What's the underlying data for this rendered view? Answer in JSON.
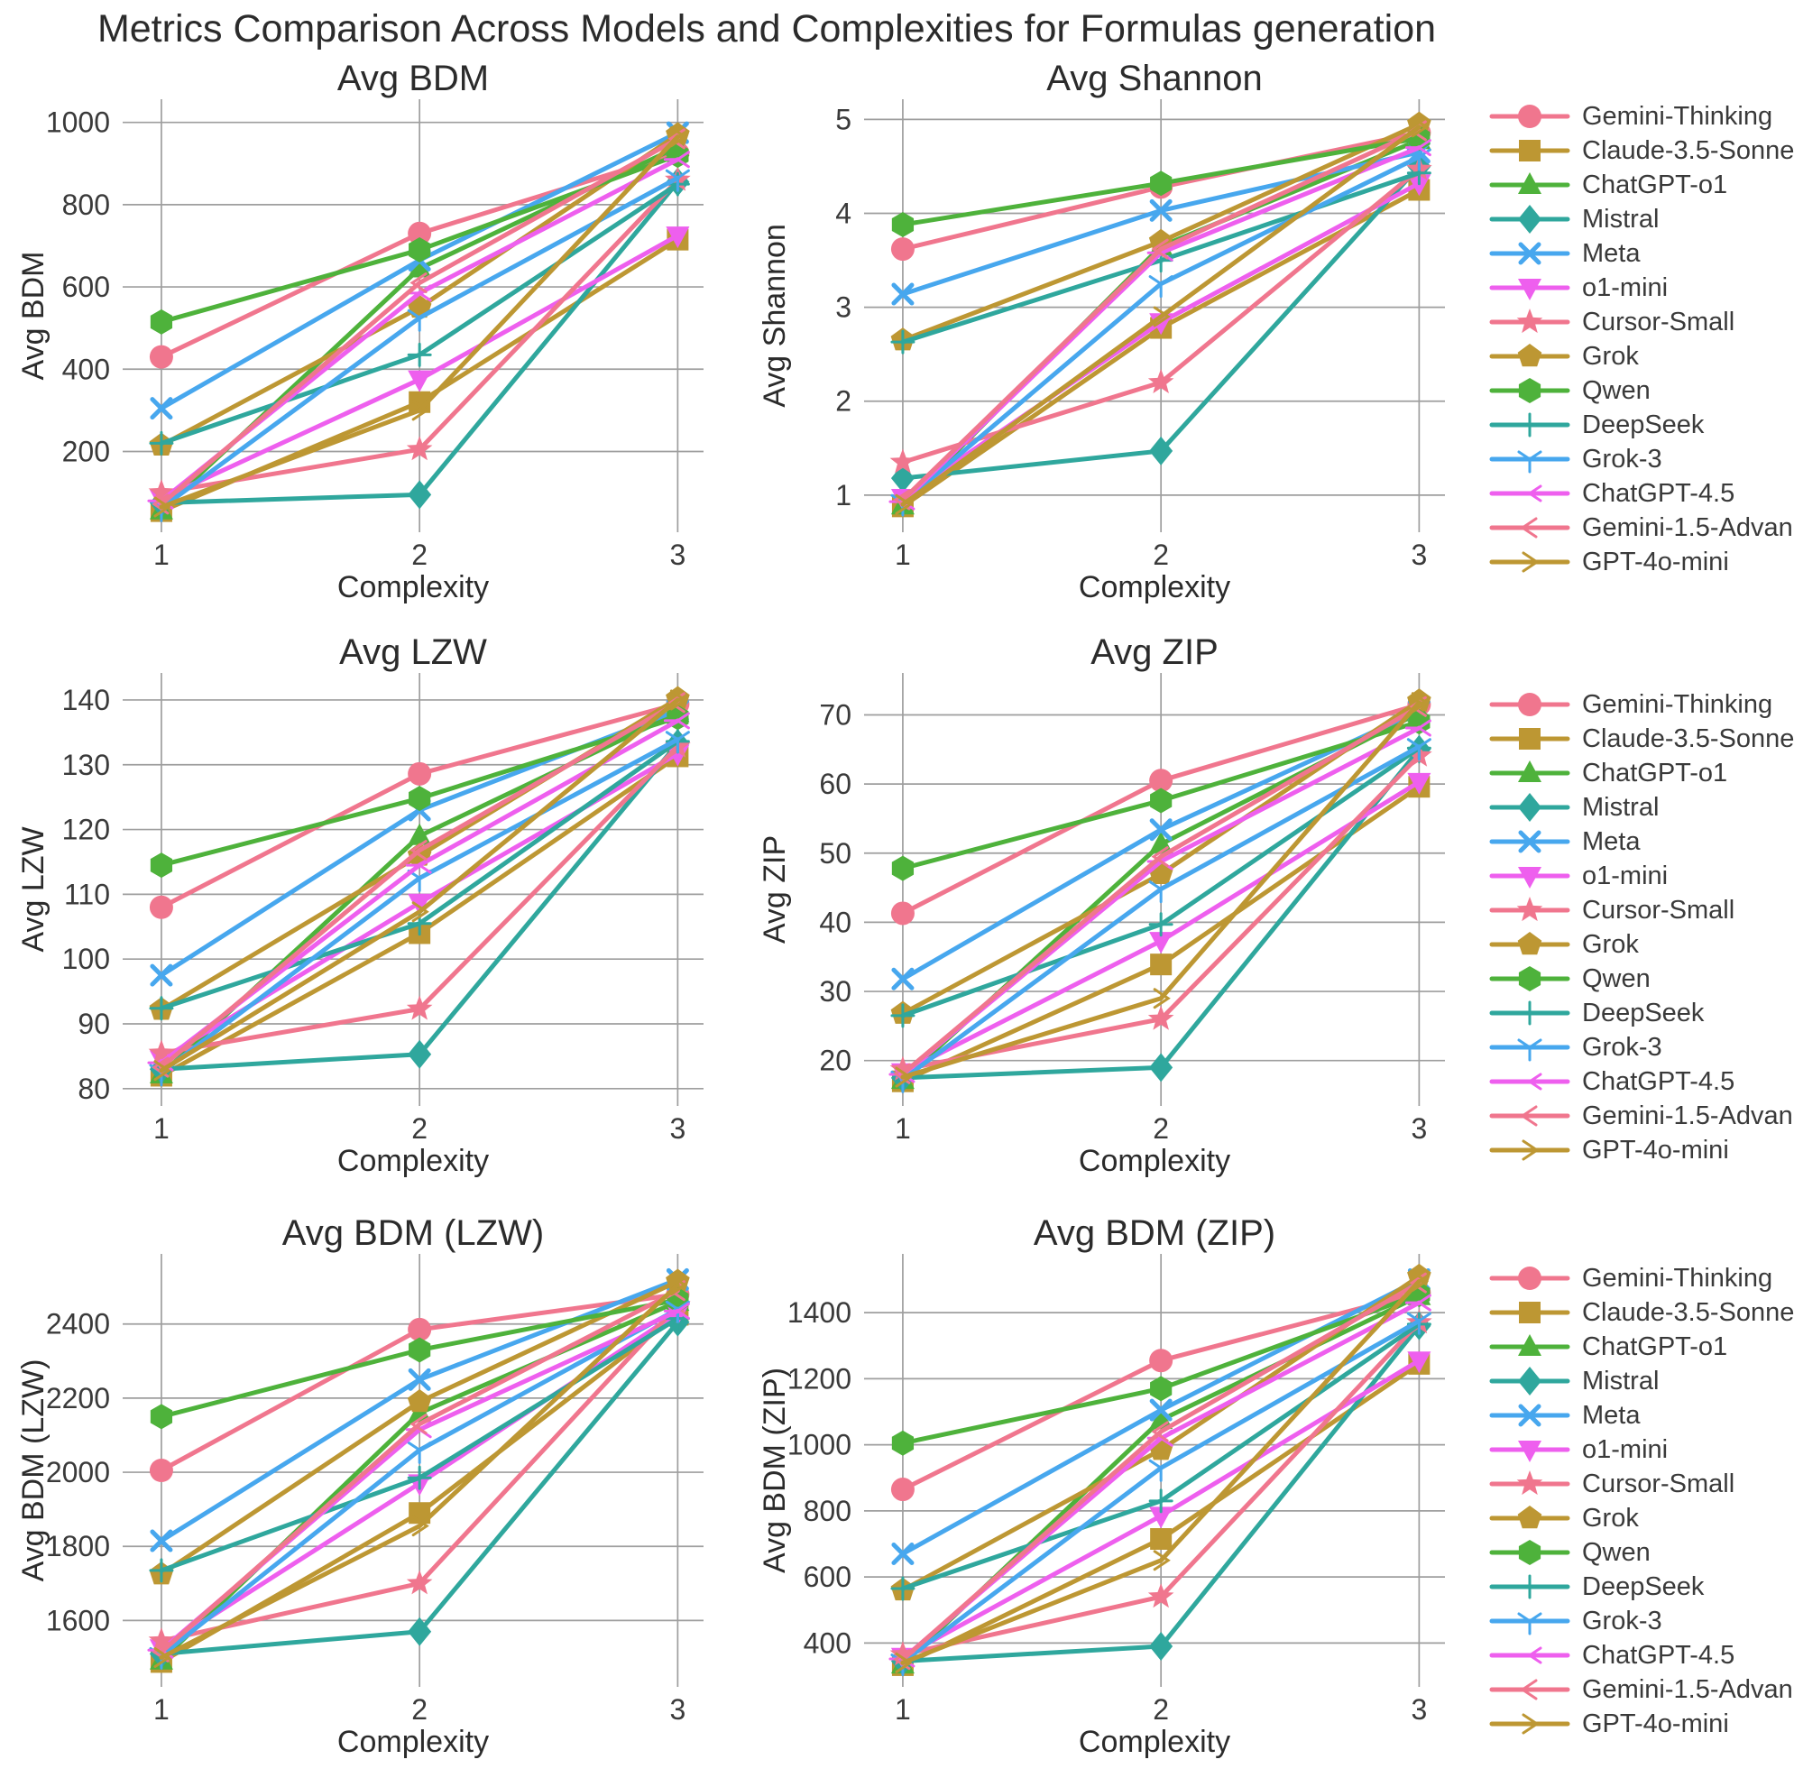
{
  "title": "Metrics Comparison Across Models and Complexities for Formulas generation",
  "xlabel": "Complexity",
  "x_ticks": [
    "1",
    "2",
    "3"
  ],
  "palette": {
    "pink": "#F0768E",
    "olive": "#BD9733",
    "green": "#4EB23B",
    "teal": "#2FA79D",
    "blue": "#47A7EE",
    "magenta": "#EE5FEE",
    "grid": "#9E9E9E",
    "text": "#3a3a3a",
    "title_text": "#2b2b2b"
  },
  "models": [
    {
      "name": "Gemini-Thinking",
      "color": "#F0768E",
      "marker": "circle"
    },
    {
      "name": "Claude-3.5-Sonnet",
      "color": "#BD9733",
      "marker": "square"
    },
    {
      "name": "ChatGPT-o1",
      "color": "#4EB23B",
      "marker": "triangle-up"
    },
    {
      "name": "Mistral",
      "color": "#2FA79D",
      "marker": "diamond"
    },
    {
      "name": "Meta",
      "color": "#47A7EE",
      "marker": "x"
    },
    {
      "name": "o1-mini",
      "color": "#EE5FEE",
      "marker": "triangle-down"
    },
    {
      "name": "Cursor-Small",
      "color": "#F0768E",
      "marker": "star"
    },
    {
      "name": "Grok",
      "color": "#BD9733",
      "marker": "pentagon"
    },
    {
      "name": "Qwen",
      "color": "#4EB23B",
      "marker": "hexagon"
    },
    {
      "name": "DeepSeek",
      "color": "#2FA79D",
      "marker": "plus"
    },
    {
      "name": "Grok-3",
      "color": "#47A7EE",
      "marker": "tri-down"
    },
    {
      "name": "ChatGPT-4.5",
      "color": "#EE5FEE",
      "marker": "tri-left"
    },
    {
      "name": "Gemini-1.5-Advanced",
      "color": "#F0768E",
      "marker": "caret-left"
    },
    {
      "name": "GPT-4o-mini",
      "color": "#BD9733",
      "marker": "arrow-right"
    }
  ],
  "chart_data": [
    {
      "id": "avg-bdm",
      "type": "line",
      "title": "Avg BDM",
      "ylabel": "Avg BDM",
      "xlabel": "Complexity",
      "x": [
        1,
        2,
        3
      ],
      "grid": true,
      "legend_position": "right",
      "yticks": [
        200,
        400,
        600,
        800,
        1000
      ],
      "ylim": [
        30,
        1030
      ],
      "xlim": [
        0.85,
        3.1
      ],
      "series": [
        {
          "name": "Gemini-Thinking",
          "values": [
            430,
            730,
            925
          ]
        },
        {
          "name": "Claude-3.5-Sonnet",
          "values": [
            55,
            320,
            715
          ]
        },
        {
          "name": "ChatGPT-o1",
          "values": [
            57,
            645,
            940
          ]
        },
        {
          "name": "Mistral",
          "values": [
            75,
            95,
            855
          ]
        },
        {
          "name": "Meta",
          "values": [
            305,
            665,
            975
          ]
        },
        {
          "name": "o1-mini",
          "values": [
            85,
            375,
            725
          ]
        },
        {
          "name": "Cursor-Small",
          "values": [
            100,
            205,
            860
          ]
        },
        {
          "name": "Grok",
          "values": [
            215,
            550,
            970
          ]
        },
        {
          "name": "Qwen",
          "values": [
            515,
            690,
            920
          ]
        },
        {
          "name": "DeepSeek",
          "values": [
            220,
            435,
            850
          ]
        },
        {
          "name": "Grok-3",
          "values": [
            62,
            525,
            865
          ]
        },
        {
          "name": "ChatGPT-4.5",
          "values": [
            80,
            585,
            910
          ]
        },
        {
          "name": "Gemini-1.5-Advanced",
          "values": [
            72,
            610,
            960
          ]
        },
        {
          "name": "GPT-4o-mini",
          "values": [
            65,
            300,
            965
          ]
        }
      ]
    },
    {
      "id": "avg-shannon",
      "type": "line",
      "title": "Avg Shannon",
      "ylabel": "Avg Shannon",
      "xlabel": "Complexity",
      "x": [
        1,
        2,
        3
      ],
      "grid": true,
      "legend_position": "right",
      "yticks": [
        1,
        2,
        3,
        4,
        5
      ],
      "ylim": [
        0.72,
        5.1
      ],
      "xlim": [
        0.85,
        3.1
      ],
      "series": [
        {
          "name": "Gemini-Thinking",
          "values": [
            3.62,
            4.28,
            4.86
          ]
        },
        {
          "name": "Claude-3.5-Sonnet",
          "values": [
            0.88,
            2.78,
            4.25
          ]
        },
        {
          "name": "ChatGPT-o1",
          "values": [
            0.89,
            3.65,
            4.78
          ]
        },
        {
          "name": "Mistral",
          "values": [
            1.18,
            1.47,
            4.5
          ]
        },
        {
          "name": "Meta",
          "values": [
            3.14,
            4.03,
            4.65
          ]
        },
        {
          "name": "o1-mini",
          "values": [
            0.97,
            2.84,
            4.32
          ]
        },
        {
          "name": "Cursor-Small",
          "values": [
            1.35,
            2.2,
            4.47
          ]
        },
        {
          "name": "Grok",
          "values": [
            2.65,
            3.7,
            4.95
          ]
        },
        {
          "name": "Qwen",
          "values": [
            3.88,
            4.32,
            4.8
          ]
        },
        {
          "name": "DeepSeek",
          "values": [
            2.63,
            3.5,
            4.43
          ]
        },
        {
          "name": "Grok-3",
          "values": [
            0.92,
            3.25,
            4.6
          ]
        },
        {
          "name": "ChatGPT-4.5",
          "values": [
            0.93,
            3.58,
            4.7
          ]
        },
        {
          "name": "Gemini-1.5-Advanced",
          "values": [
            0.95,
            3.62,
            4.88
          ]
        },
        {
          "name": "GPT-4o-mini",
          "values": [
            0.9,
            2.9,
            4.92
          ]
        }
      ]
    },
    {
      "id": "avg-lzw",
      "type": "line",
      "title": "Avg LZW",
      "ylabel": "Avg LZW",
      "xlabel": "Complexity",
      "x": [
        1,
        2,
        3
      ],
      "grid": true,
      "legend_position": "right",
      "yticks": [
        80,
        90,
        100,
        110,
        120,
        130,
        140
      ],
      "ylim": [
        79,
        142.5
      ],
      "xlim": [
        0.85,
        3.1
      ],
      "series": [
        {
          "name": "Gemini-Thinking",
          "values": [
            108,
            128.6,
            139.4
          ]
        },
        {
          "name": "Claude-3.5-Sonnet",
          "values": [
            82,
            104,
            131.3
          ]
        },
        {
          "name": "ChatGPT-o1",
          "values": [
            82.2,
            119,
            138
          ]
        },
        {
          "name": "Mistral",
          "values": [
            83,
            85.3,
            133.3
          ]
        },
        {
          "name": "Meta",
          "values": [
            97.5,
            123,
            138.4
          ]
        },
        {
          "name": "o1-mini",
          "values": [
            84.5,
            108.7,
            131.7
          ]
        },
        {
          "name": "Cursor-Small",
          "values": [
            85.5,
            92.3,
            132.8
          ]
        },
        {
          "name": "Grok",
          "values": [
            92.2,
            116,
            140.2
          ]
        },
        {
          "name": "Qwen",
          "values": [
            114.5,
            124.8,
            137.3
          ]
        },
        {
          "name": "DeepSeek",
          "values": [
            92.4,
            105.5,
            133.6
          ]
        },
        {
          "name": "Grok-3",
          "values": [
            82.5,
            112.5,
            133.9
          ]
        },
        {
          "name": "ChatGPT-4.5",
          "values": [
            84,
            114.5,
            136.8
          ]
        },
        {
          "name": "Gemini-1.5-Advanced",
          "values": [
            83.3,
            116.8,
            139.6
          ]
        },
        {
          "name": "GPT-4o-mini",
          "values": [
            82.8,
            107.3,
            140
          ]
        }
      ]
    },
    {
      "id": "avg-zip",
      "type": "line",
      "title": "Avg ZIP",
      "ylabel": "Avg ZIP",
      "xlabel": "Complexity",
      "x": [
        1,
        2,
        3
      ],
      "grid": true,
      "legend_position": "right",
      "yticks": [
        20,
        30,
        40,
        50,
        60,
        70
      ],
      "ylim": [
        15,
        74.5
      ],
      "xlim": [
        0.85,
        3.1
      ],
      "series": [
        {
          "name": "Gemini-Thinking",
          "values": [
            41.3,
            60.5,
            71.5
          ]
        },
        {
          "name": "Claude-3.5-Sonnet",
          "values": [
            17,
            33.9,
            59.6
          ]
        },
        {
          "name": "ChatGPT-o1",
          "values": [
            17.2,
            51.3,
            70.3
          ]
        },
        {
          "name": "Mistral",
          "values": [
            17.5,
            19,
            65
          ]
        },
        {
          "name": "Meta",
          "values": [
            31.8,
            53.4,
            70.6
          ]
        },
        {
          "name": "o1-mini",
          "values": [
            18.3,
            37.3,
            60.3
          ]
        },
        {
          "name": "Cursor-Small",
          "values": [
            18.7,
            26,
            64.1
          ]
        },
        {
          "name": "Grok",
          "values": [
            26.8,
            47,
            72
          ]
        },
        {
          "name": "Qwen",
          "values": [
            47.8,
            57.6,
            69
          ]
        },
        {
          "name": "DeepSeek",
          "values": [
            26.5,
            39.7,
            65.2
          ]
        },
        {
          "name": "Grok-3",
          "values": [
            17.3,
            44.8,
            65.4
          ]
        },
        {
          "name": "ChatGPT-4.5",
          "values": [
            18,
            48.8,
            68.1
          ]
        },
        {
          "name": "Gemini-1.5-Advanced",
          "values": [
            18.1,
            49.5,
            71.2
          ]
        },
        {
          "name": "GPT-4o-mini",
          "values": [
            17.6,
            29,
            71.8
          ]
        }
      ]
    },
    {
      "id": "avg-bdm-lzw",
      "type": "line",
      "title": "Avg BDM (LZW)",
      "ylabel": "Avg BDM (LZW)",
      "xlabel": "Complexity",
      "x": [
        1,
        2,
        3
      ],
      "grid": true,
      "legend_position": "right",
      "yticks": [
        1600,
        1800,
        2000,
        2200,
        2400
      ],
      "ylim": [
        1450,
        2560
      ],
      "xlim": [
        0.85,
        3.1
      ],
      "series": [
        {
          "name": "Gemini-Thinking",
          "values": [
            2005,
            2385,
            2480
          ]
        },
        {
          "name": "Claude-3.5-Sonnet",
          "values": [
            1488,
            1890,
            2425
          ]
        },
        {
          "name": "ChatGPT-o1",
          "values": [
            1492,
            2160,
            2460
          ]
        },
        {
          "name": "Mistral",
          "values": [
            1510,
            1570,
            2405
          ]
        },
        {
          "name": "Meta",
          "values": [
            1815,
            2250,
            2520
          ]
        },
        {
          "name": "o1-mini",
          "values": [
            1525,
            1970,
            2430
          ]
        },
        {
          "name": "Cursor-Small",
          "values": [
            1545,
            1700,
            2450
          ]
        },
        {
          "name": "Grok",
          "values": [
            1725,
            2190,
            2515
          ]
        },
        {
          "name": "Qwen",
          "values": [
            2150,
            2330,
            2465
          ]
        },
        {
          "name": "DeepSeek",
          "values": [
            1735,
            1985,
            2415
          ]
        },
        {
          "name": "Grok-3",
          "values": [
            1505,
            2060,
            2440
          ]
        },
        {
          "name": "ChatGPT-4.5",
          "values": [
            1520,
            2115,
            2435
          ]
        },
        {
          "name": "Gemini-1.5-Advanced",
          "values": [
            1515,
            2130,
            2490
          ]
        },
        {
          "name": "GPT-4o-mini",
          "values": [
            1500,
            1855,
            2505
          ]
        }
      ]
    },
    {
      "id": "avg-bdm-zip",
      "type": "line",
      "title": "Avg BDM (ZIP)",
      "ylabel": "Avg BDM (ZIP)",
      "xlabel": "Complexity",
      "x": [
        1,
        2,
        3
      ],
      "grid": true,
      "legend_position": "right",
      "yticks": [
        400,
        600,
        800,
        1000,
        1200,
        1400
      ],
      "ylim": [
        300,
        1545
      ],
      "xlim": [
        0.85,
        3.1
      ],
      "series": [
        {
          "name": "Gemini-Thinking",
          "values": [
            865,
            1255,
            1460
          ]
        },
        {
          "name": "Claude-3.5-Sonnet",
          "values": [
            333,
            715,
            1245
          ]
        },
        {
          "name": "ChatGPT-o1",
          "values": [
            335,
            1075,
            1450
          ]
        },
        {
          "name": "Mistral",
          "values": [
            345,
            390,
            1360
          ]
        },
        {
          "name": "Meta",
          "values": [
            670,
            1105,
            1500
          ]
        },
        {
          "name": "o1-mini",
          "values": [
            358,
            785,
            1255
          ]
        },
        {
          "name": "Cursor-Small",
          "values": [
            365,
            540,
            1370
          ]
        },
        {
          "name": "Grok",
          "values": [
            560,
            985,
            1510
          ]
        },
        {
          "name": "Qwen",
          "values": [
            1005,
            1170,
            1455
          ]
        },
        {
          "name": "DeepSeek",
          "values": [
            565,
            830,
            1365
          ]
        },
        {
          "name": "Grok-3",
          "values": [
            342,
            930,
            1375
          ]
        },
        {
          "name": "ChatGPT-4.5",
          "values": [
            352,
            1020,
            1430
          ]
        },
        {
          "name": "Gemini-1.5-Advanced",
          "values": [
            350,
            1040,
            1490
          ]
        },
        {
          "name": "GPT-4o-mini",
          "values": [
            340,
            650,
            1495
          ]
        }
      ]
    }
  ]
}
